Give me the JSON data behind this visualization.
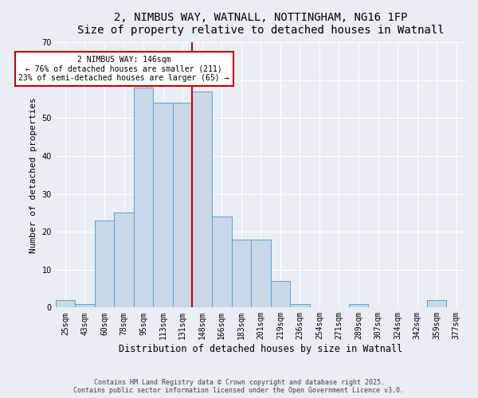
{
  "title_line1": "2, NIMBUS WAY, WATNALL, NOTTINGHAM, NG16 1FP",
  "title_line2": "Size of property relative to detached houses in Watnall",
  "xlabel": "Distribution of detached houses by size in Watnall",
  "ylabel": "Number of detached properties",
  "categories": [
    "25sqm",
    "43sqm",
    "60sqm",
    "78sqm",
    "95sqm",
    "113sqm",
    "131sqm",
    "148sqm",
    "166sqm",
    "183sqm",
    "201sqm",
    "219sqm",
    "236sqm",
    "254sqm",
    "271sqm",
    "289sqm",
    "307sqm",
    "324sqm",
    "342sqm",
    "359sqm",
    "377sqm"
  ],
  "values": [
    2,
    1,
    23,
    25,
    58,
    54,
    54,
    57,
    24,
    18,
    18,
    7,
    1,
    0,
    0,
    1,
    0,
    0,
    0,
    2,
    0
  ],
  "bar_color": "#c8d8e8",
  "bar_edge_color": "#5a9fd4",
  "annotation_text": "2 NIMBUS WAY: 146sqm\n← 76% of detached houses are smaller (211)\n23% of semi-detached houses are larger (65) →",
  "annotation_box_color": "#ffffff",
  "annotation_box_edge": "#cc0000",
  "property_line_color": "#cc0000",
  "ylim": [
    0,
    70
  ],
  "yticks": [
    0,
    10,
    20,
    30,
    40,
    50,
    60,
    70
  ],
  "background_color": "#e8eef4",
  "footer_line1": "Contains HM Land Registry data © Crown copyright and database right 2025.",
  "footer_line2": "Contains public sector information licensed under the Open Government Licence v3.0.",
  "title_fontsize": 10,
  "axis_fontsize": 8.5,
  "tick_fontsize": 7,
  "annotation_fontsize": 7,
  "ylabel_fontsize": 8
}
